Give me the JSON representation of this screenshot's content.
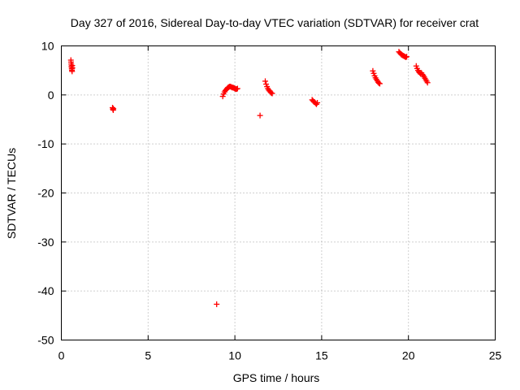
{
  "chart_data": {
    "type": "scatter",
    "title": "Day 327 of 2016, Sidereal Day-to-day VTEC variation (SDTVAR) for receiver crat",
    "xlabel": "GPS time / hours",
    "ylabel": "SDTVAR / TECUs",
    "xlim": [
      0,
      25
    ],
    "ylim": [
      -50,
      10
    ],
    "xticks": [
      0,
      5,
      10,
      15,
      20,
      25
    ],
    "yticks": [
      -50,
      -40,
      -30,
      -20,
      -10,
      0,
      10
    ],
    "grid": true,
    "marker": "plus",
    "color": "#ff0000",
    "series": [
      {
        "name": "SDTVAR",
        "points": [
          [
            0.55,
            7.1
          ],
          [
            0.56,
            6.7
          ],
          [
            0.57,
            6.3
          ],
          [
            0.58,
            5.9
          ],
          [
            0.59,
            5.6
          ],
          [
            0.6,
            5.3
          ],
          [
            0.61,
            5.0
          ],
          [
            0.62,
            4.8
          ],
          [
            0.63,
            6.0
          ],
          [
            0.64,
            5.5
          ],
          [
            2.95,
            -2.6
          ],
          [
            2.97,
            -2.9
          ],
          [
            2.99,
            -3.1
          ],
          [
            3.0,
            -2.8
          ],
          [
            8.95,
            -42.7
          ],
          [
            9.3,
            -0.3
          ],
          [
            9.35,
            0.2
          ],
          [
            9.4,
            0.6
          ],
          [
            9.45,
            0.9
          ],
          [
            9.5,
            1.1
          ],
          [
            9.55,
            1.3
          ],
          [
            9.6,
            1.5
          ],
          [
            9.65,
            1.6
          ],
          [
            9.7,
            1.7
          ],
          [
            9.75,
            1.7
          ],
          [
            9.8,
            1.6
          ],
          [
            9.85,
            1.5
          ],
          [
            9.9,
            1.5
          ],
          [
            9.95,
            1.4
          ],
          [
            10.0,
            1.3
          ],
          [
            10.05,
            1.2
          ],
          [
            10.1,
            1.2
          ],
          [
            10.15,
            1.3
          ],
          [
            11.45,
            -4.2
          ],
          [
            11.75,
            2.8
          ],
          [
            11.8,
            2.2
          ],
          [
            11.85,
            1.7
          ],
          [
            11.9,
            1.3
          ],
          [
            11.95,
            1.0
          ],
          [
            12.0,
            0.8
          ],
          [
            12.05,
            0.6
          ],
          [
            12.1,
            0.4
          ],
          [
            12.15,
            0.3
          ],
          [
            14.45,
            -1.0
          ],
          [
            14.5,
            -1.2
          ],
          [
            14.55,
            -1.4
          ],
          [
            14.6,
            -1.5
          ],
          [
            14.65,
            -1.7
          ],
          [
            14.7,
            -1.9
          ],
          [
            14.75,
            -1.6
          ],
          [
            17.95,
            4.9
          ],
          [
            18.0,
            4.4
          ],
          [
            18.05,
            3.9
          ],
          [
            18.1,
            3.5
          ],
          [
            18.15,
            3.2
          ],
          [
            18.2,
            2.9
          ],
          [
            18.25,
            2.6
          ],
          [
            18.3,
            2.4
          ],
          [
            18.35,
            2.3
          ],
          [
            19.45,
            8.8
          ],
          [
            19.5,
            8.6
          ],
          [
            19.55,
            8.4
          ],
          [
            19.6,
            8.2
          ],
          [
            19.65,
            8.1
          ],
          [
            19.7,
            8.0
          ],
          [
            19.75,
            7.9
          ],
          [
            19.8,
            7.8
          ],
          [
            19.85,
            7.7
          ],
          [
            19.9,
            7.8
          ],
          [
            20.45,
            5.9
          ],
          [
            20.5,
            5.4
          ],
          [
            20.55,
            5.0
          ],
          [
            20.6,
            4.7
          ],
          [
            20.65,
            4.5
          ],
          [
            20.7,
            4.3
          ],
          [
            20.75,
            4.5
          ],
          [
            20.8,
            4.2
          ],
          [
            20.85,
            4.0
          ],
          [
            20.9,
            3.7
          ],
          [
            20.95,
            3.4
          ],
          [
            21.0,
            3.1
          ],
          [
            21.05,
            2.8
          ],
          [
            21.1,
            2.5
          ]
        ]
      }
    ]
  }
}
